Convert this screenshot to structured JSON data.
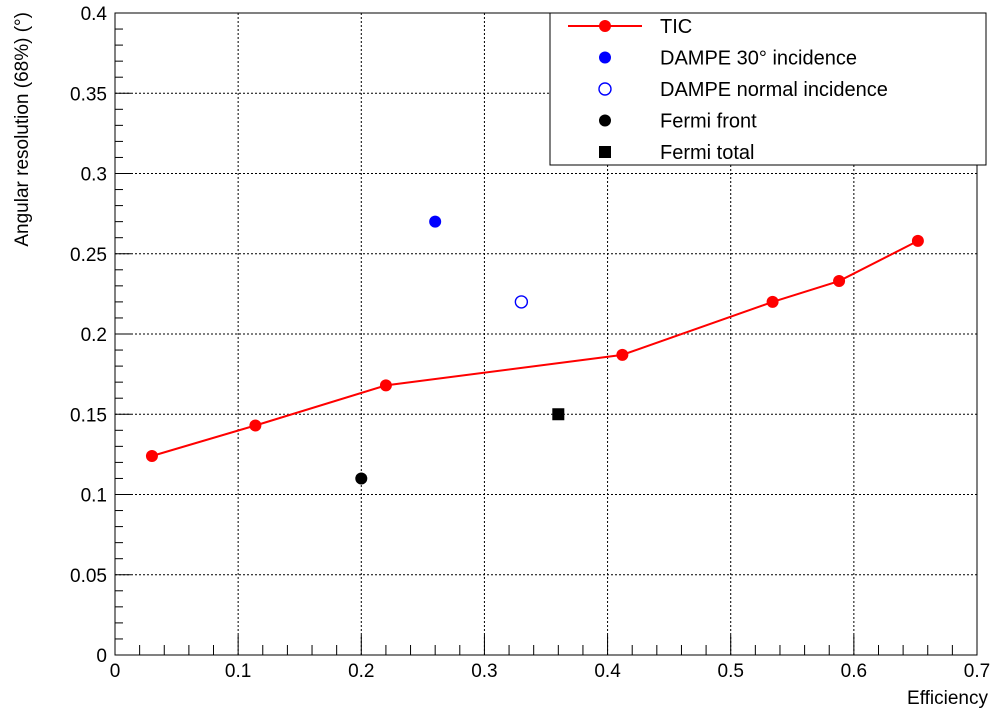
{
  "chart_data": {
    "type": "scatter",
    "title": "",
    "xlabel": "Efficiency",
    "ylabel": "Angular resolution (68%) (°)",
    "xlim": [
      0,
      0.7
    ],
    "ylim": [
      0,
      0.4
    ],
    "x_ticks": [
      "0",
      "0.1",
      "0.2",
      "0.3",
      "0.4",
      "0.5",
      "0.6",
      "0.7"
    ],
    "y_ticks": [
      "0",
      "0.05",
      "0.1",
      "0.15",
      "0.2",
      "0.25",
      "0.3",
      "0.35",
      "0.4"
    ],
    "grid": true,
    "legend_position": "top-right",
    "series": [
      {
        "name": "TIC",
        "style": "line-with-filled-circles",
        "color": "#ff0000",
        "points": [
          {
            "x": 0.03,
            "y": 0.124
          },
          {
            "x": 0.114,
            "y": 0.143
          },
          {
            "x": 0.22,
            "y": 0.168
          },
          {
            "x": 0.412,
            "y": 0.187
          },
          {
            "x": 0.534,
            "y": 0.22
          },
          {
            "x": 0.588,
            "y": 0.233
          },
          {
            "x": 0.652,
            "y": 0.258
          }
        ]
      },
      {
        "name": "DAMPE 30° incidence",
        "style": "filled-circle",
        "color": "#0000ff",
        "points": [
          {
            "x": 0.26,
            "y": 0.27
          }
        ]
      },
      {
        "name": "DAMPE normal incidence",
        "style": "open-circle",
        "color": "#0000ff",
        "points": [
          {
            "x": 0.33,
            "y": 0.22
          }
        ]
      },
      {
        "name": "Fermi front",
        "style": "filled-circle",
        "color": "#000000",
        "points": [
          {
            "x": 0.2,
            "y": 0.11
          }
        ]
      },
      {
        "name": "Fermi total",
        "style": "filled-square",
        "color": "#000000",
        "points": [
          {
            "x": 0.36,
            "y": 0.15
          }
        ]
      }
    ]
  }
}
